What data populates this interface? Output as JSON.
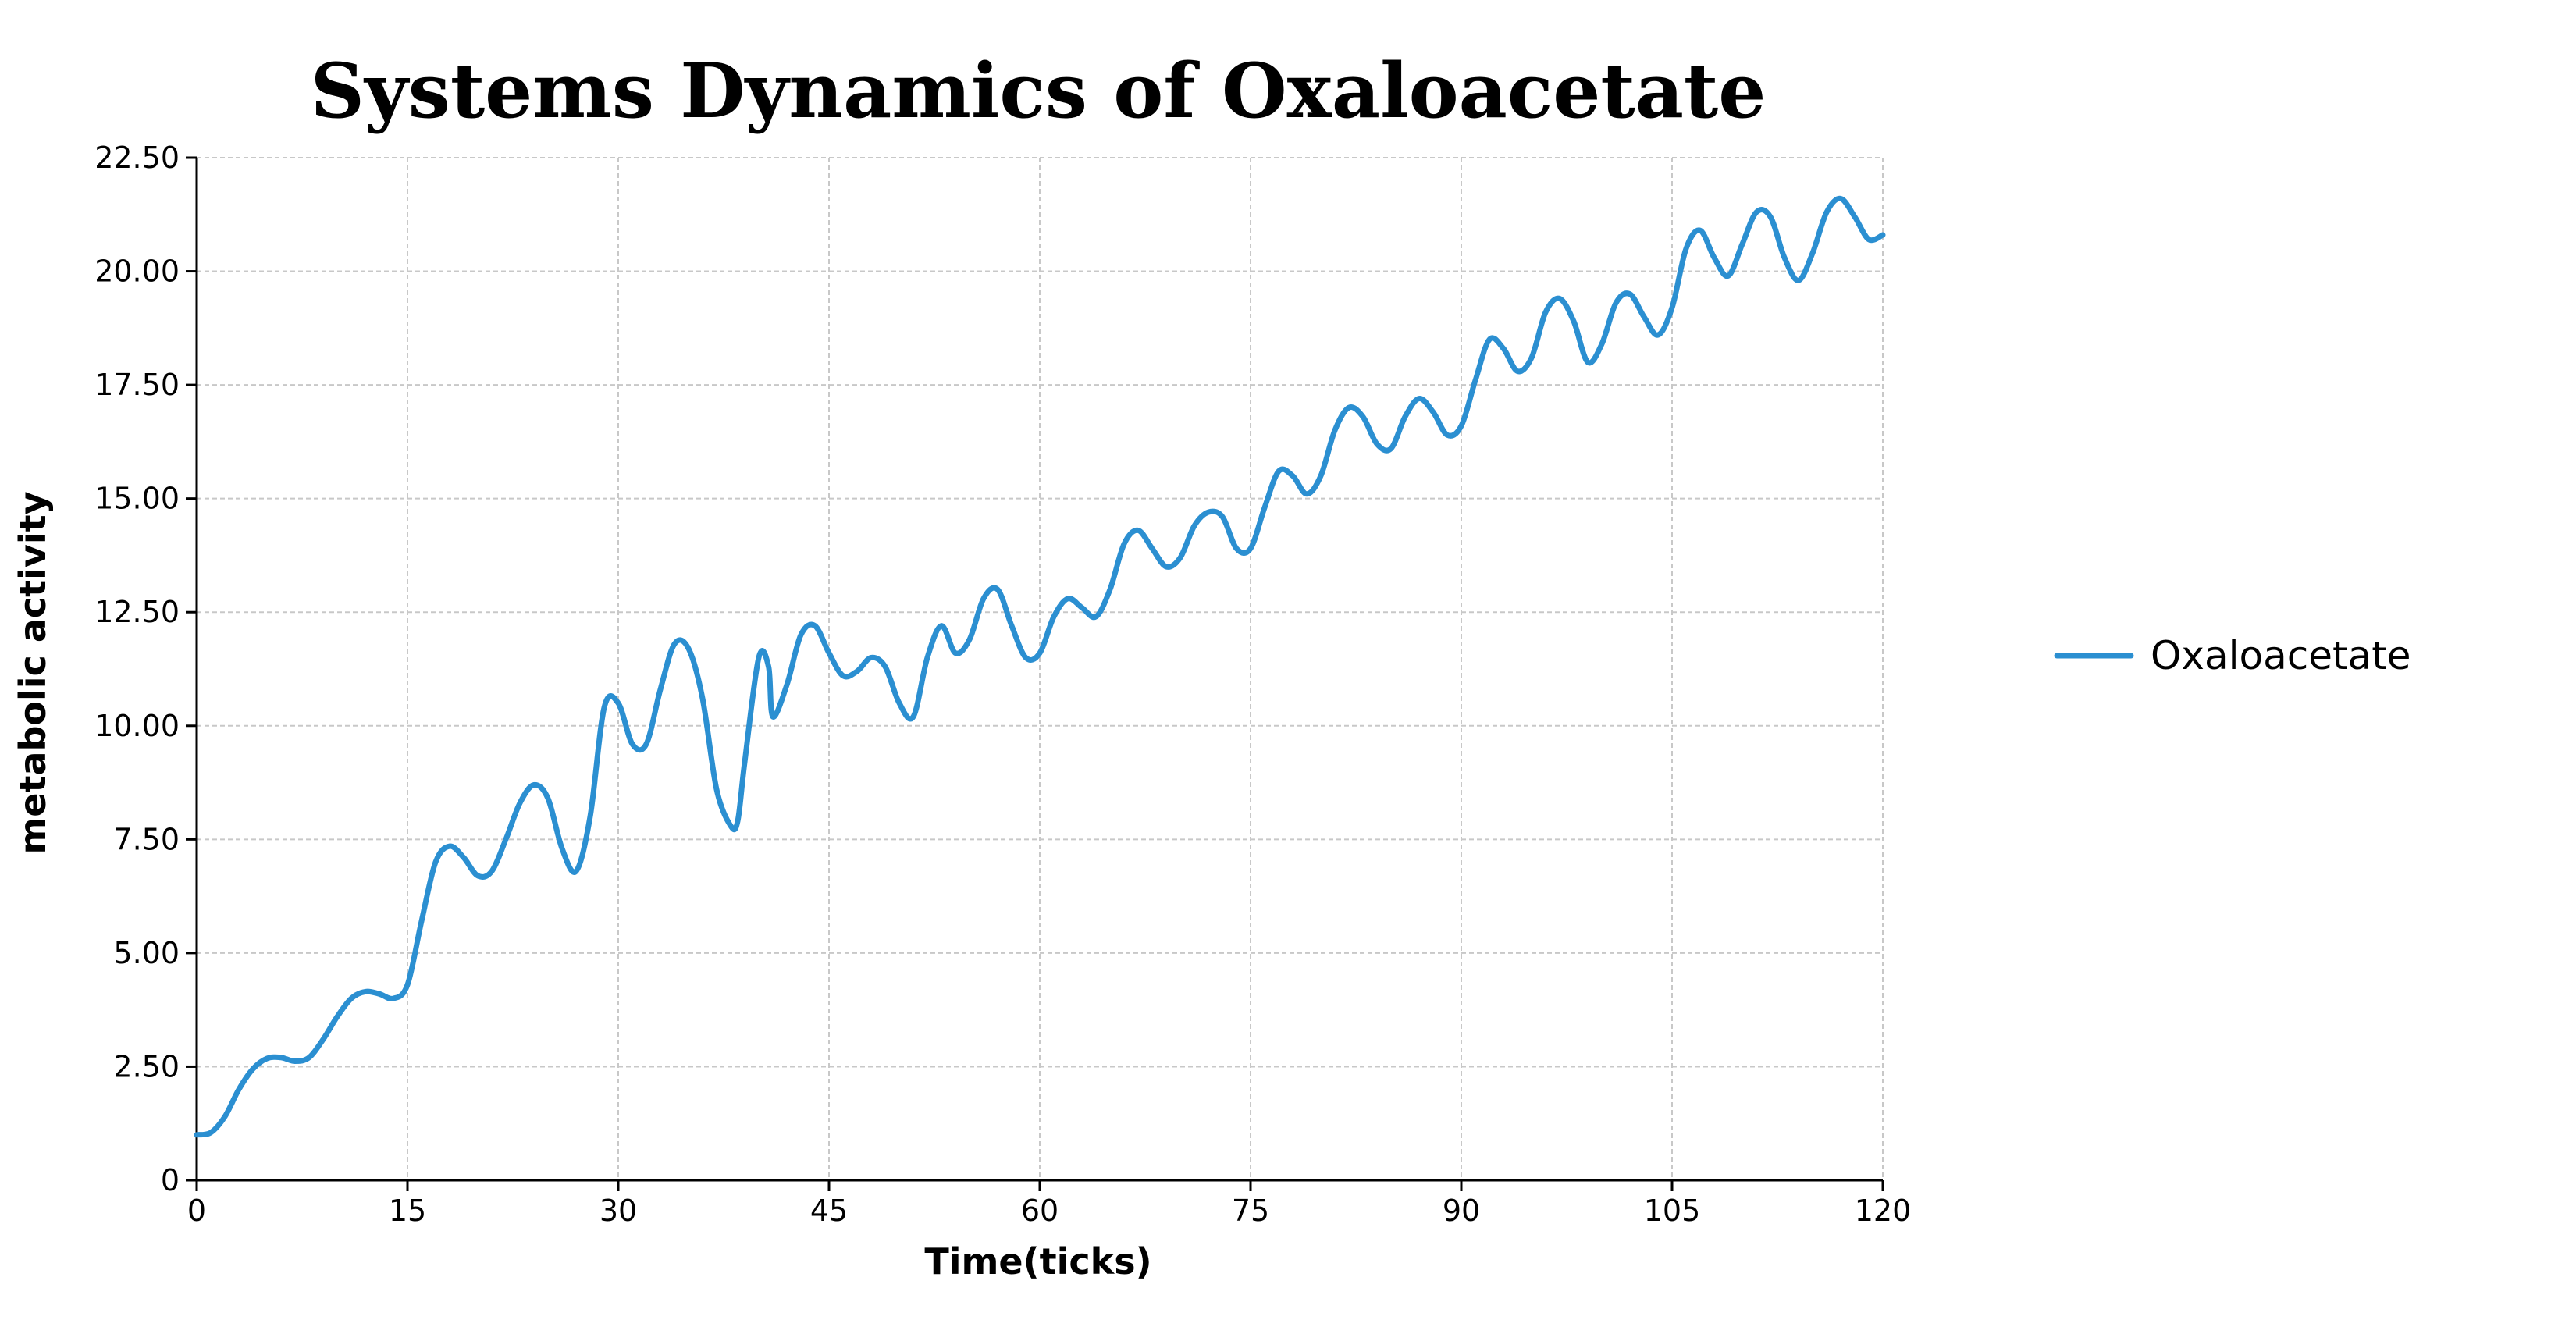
{
  "chart_data": {
    "type": "line",
    "title": "Systems Dynamics of Oxaloacetate",
    "xlabel": "Time(ticks)",
    "ylabel": "metabolic activity",
    "xlim": [
      0,
      120
    ],
    "ylim": [
      0,
      22.5
    ],
    "x_ticks": [
      "0",
      "15",
      "30",
      "45",
      "60",
      "75",
      "90",
      "105",
      "120"
    ],
    "y_ticks": [
      "0",
      "2.50",
      "5.00",
      "7.50",
      "10.00",
      "12.50",
      "15.00",
      "17.50",
      "20.00",
      "22.50"
    ],
    "grid": true,
    "legend_position": "right",
    "series": [
      {
        "name": "Oxaloacetate",
        "color": "#2b8fd1",
        "x": [
          0,
          1,
          2,
          3,
          4,
          5,
          6,
          7,
          8,
          9,
          10,
          11,
          12,
          13,
          14,
          15,
          16,
          17,
          18,
          19,
          20,
          21,
          22,
          23,
          24,
          25,
          26,
          27,
          28,
          29,
          30,
          31,
          32,
          33,
          34,
          35,
          36,
          37,
          38,
          38.5,
          39,
          40,
          40.7,
          41,
          42,
          43,
          44,
          45,
          46,
          47,
          48,
          49,
          50,
          51,
          52,
          53,
          54,
          55,
          56,
          57,
          58,
          59,
          60,
          61,
          62,
          63,
          64,
          65,
          66,
          67,
          68,
          69,
          70,
          71,
          72,
          73,
          74,
          75,
          76,
          77,
          78,
          79,
          80,
          81,
          82,
          83,
          84,
          85,
          86,
          87,
          88,
          89,
          90,
          91,
          92,
          93,
          94,
          95,
          96,
          97,
          98,
          99,
          100,
          101,
          102,
          103,
          104,
          105,
          106,
          107,
          108,
          109,
          110,
          111,
          112,
          113,
          114,
          115,
          116,
          117,
          118,
          119,
          120
        ],
        "values": [
          1.0,
          1.05,
          1.4,
          2.0,
          2.45,
          2.68,
          2.7,
          2.62,
          2.7,
          3.1,
          3.6,
          4.0,
          4.15,
          4.1,
          4.0,
          4.3,
          5.7,
          7.0,
          7.35,
          7.1,
          6.7,
          6.8,
          7.5,
          8.3,
          8.7,
          8.4,
          7.3,
          6.8,
          8.0,
          10.4,
          10.5,
          9.6,
          9.6,
          10.8,
          11.8,
          11.7,
          10.6,
          8.6,
          7.8,
          7.9,
          9.2,
          11.5,
          11.3,
          10.2,
          10.9,
          12.0,
          12.2,
          11.6,
          11.1,
          11.2,
          11.5,
          11.3,
          10.5,
          10.2,
          11.5,
          12.2,
          11.6,
          11.9,
          12.8,
          13.0,
          12.2,
          11.5,
          11.6,
          12.4,
          12.8,
          12.6,
          12.4,
          13.0,
          14.0,
          14.3,
          13.9,
          13.5,
          13.7,
          14.4,
          14.7,
          14.6,
          13.9,
          13.9,
          14.8,
          15.6,
          15.5,
          15.1,
          15.5,
          16.5,
          17.0,
          16.8,
          16.2,
          16.1,
          16.8,
          17.2,
          16.9,
          16.4,
          16.6,
          17.6,
          18.5,
          18.3,
          17.8,
          18.1,
          19.1,
          19.4,
          18.9,
          18.0,
          18.4,
          19.3,
          19.5,
          19.0,
          18.6,
          19.2,
          20.5,
          20.9,
          20.3,
          19.9,
          20.6,
          21.3,
          21.2,
          20.3,
          19.8,
          20.4,
          21.3,
          21.6,
          21.2,
          20.7,
          20.8
        ]
      }
    ]
  }
}
